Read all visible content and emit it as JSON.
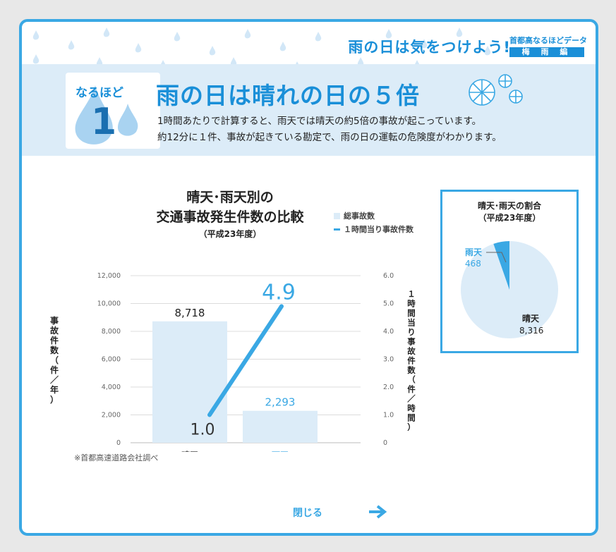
{
  "header": {
    "title": "雨の日は気をつけよう!",
    "series_name": "首都高なるほどデータ",
    "series_sub": "梅 雨 編"
  },
  "badge": {
    "label": "なるほど",
    "number": "1"
  },
  "headline": "雨の日は晴れの日の５倍",
  "description": [
    "1時間あたりで計算すると、雨天では晴天の約5倍の事故が起こっています。",
    "約12分に１件、事故が起きている勘定で、雨の日の運転の危険度がわかります。"
  ],
  "colors": {
    "accent": "#3aa8e4",
    "bar_light": "#dcecf8",
    "dark_text": "#222222"
  },
  "chart_data": [
    {
      "type": "bar",
      "title_line1": "晴天･雨天別の",
      "title_line2": "交通事故発生件数の比較",
      "subtitle": "（平成23年度）",
      "categories": [
        "晴天",
        "雨天"
      ],
      "series": [
        {
          "name": "総事故数",
          "type": "bar",
          "values": [
            8718,
            2293
          ],
          "labels": [
            "8,718",
            "2,293"
          ]
        },
        {
          "name": "１時間当り事故件数",
          "type": "line",
          "values": [
            1.0,
            4.9
          ],
          "labels": [
            "1.0",
            "4.9"
          ]
        }
      ],
      "ylabel": "事故件数（件／年）",
      "y2label": "１時間当り事故件数（件／時間）",
      "ylim": [
        0,
        12000
      ],
      "y2lim": [
        0,
        6
      ],
      "yticks": [
        "0",
        "2,000",
        "4,000",
        "6,000",
        "8,000",
        "10,000",
        "12,000"
      ],
      "y2ticks": [
        "0",
        "1.0",
        "2.0",
        "3.0",
        "4.0",
        "5.0",
        "6.0"
      ],
      "grid": true,
      "legend": "top-right",
      "note": "※首都高速道路会社調べ"
    },
    {
      "type": "pie",
      "title_line1": "晴天･雨天の割合",
      "title_line2": "（平成23年度）",
      "slices": [
        {
          "label": "晴天",
          "value": 8316,
          "value_text": "8,316"
        },
        {
          "label": "雨天",
          "value": 468,
          "value_text": "468"
        }
      ]
    }
  ],
  "footer": {
    "close_label": "閉じる"
  }
}
